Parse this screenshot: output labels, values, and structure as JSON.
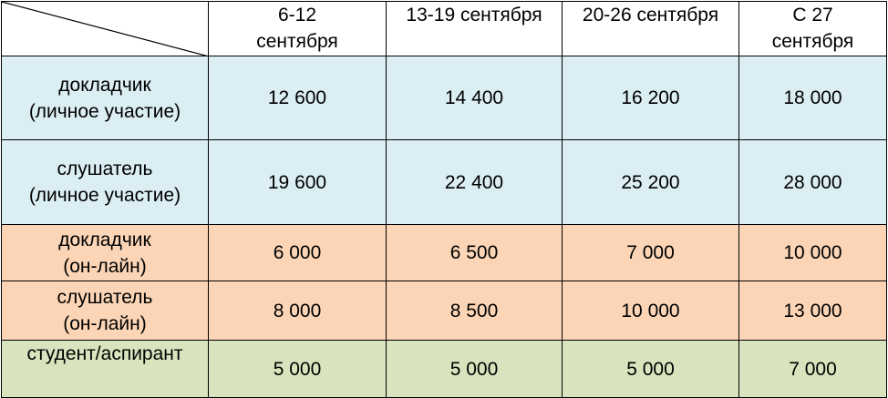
{
  "table": {
    "header": [
      [
        "6-12",
        "сентября"
      ],
      [
        "13-19 сентября"
      ],
      [
        "20-26 сентября"
      ],
      [
        "С 27",
        "сентября"
      ]
    ],
    "rows": [
      {
        "label": [
          "докладчик",
          "(личное участие)"
        ],
        "cells": [
          "12 600",
          "14 400",
          "16 200",
          "18 000"
        ]
      },
      {
        "label": [
          "слушатель",
          "(личное участие)"
        ],
        "cells": [
          "19 600",
          "22 400",
          "25 200",
          "28 000"
        ]
      },
      {
        "label": [
          "докладчик",
          "(он-лайн)"
        ],
        "cells": [
          "6 000",
          "6 500",
          "7 000",
          "10 000"
        ]
      },
      {
        "label": [
          "слушатель",
          "(он-лайн)"
        ],
        "cells": [
          "8 000",
          "8 500",
          "10 000",
          "13 000"
        ]
      },
      {
        "label": [
          "студент/аспирант"
        ],
        "cells": [
          "5 000",
          "5 000",
          "5 000",
          "7 000"
        ]
      }
    ]
  }
}
